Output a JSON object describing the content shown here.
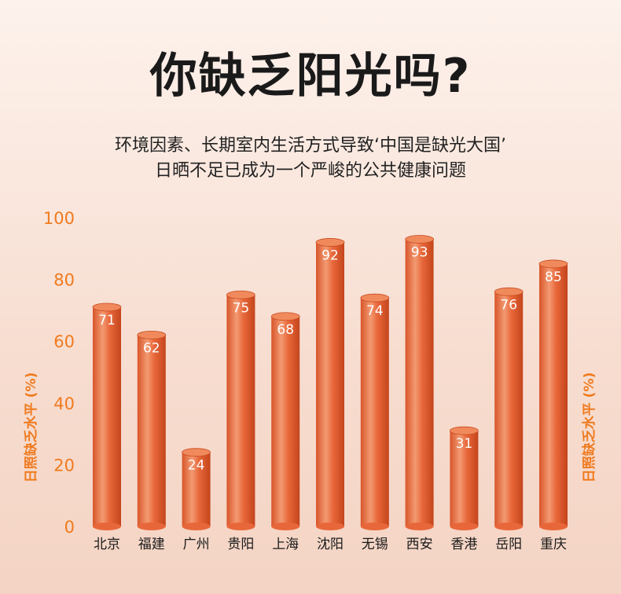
{
  "header": {
    "title": "你缺乏阳光吗?",
    "subtitle_line1": "环境因素、长期室内生活方式导致‘中国是缺光大国’",
    "subtitle_line2": "日晒不足已成为一个严峻的公共健康问题"
  },
  "colors": {
    "bar_light": "#f5a07a",
    "bar_mid": "#e8673a",
    "bar_dark": "#c94a20",
    "bar_top": "#f08a5c",
    "tick": "#f07a1e"
  },
  "chart_data": {
    "type": "bar",
    "title": "你缺乏阳光吗?",
    "ylabel": "日照缺乏水平 (%)",
    "ylabel_right": "日照缺乏水平 (%)",
    "xlabel": "",
    "ylim": [
      0,
      100
    ],
    "yticks": [
      0,
      20,
      40,
      60,
      80,
      100
    ],
    "grid": false,
    "categories": [
      "北京",
      "福建",
      "广州",
      "贵阳",
      "上海",
      "沈阳",
      "无锡",
      "西安",
      "香港",
      "岳阳",
      "重庆"
    ],
    "values": [
      71,
      62,
      24,
      75,
      68,
      92,
      74,
      93,
      31,
      76,
      85
    ]
  }
}
